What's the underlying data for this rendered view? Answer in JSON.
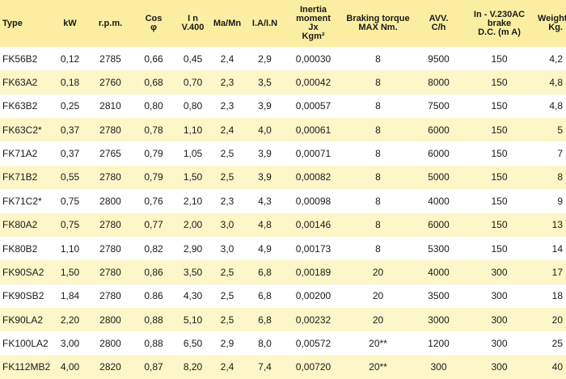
{
  "table": {
    "header": [
      [
        "Type"
      ],
      [
        "kW"
      ],
      [
        "r.p.m."
      ],
      [
        "Cos",
        "φ"
      ],
      [
        "I n",
        "V.400"
      ],
      [
        "Ma/Mn"
      ],
      [
        "I.A/I.N"
      ],
      [
        "Inertia",
        "moment",
        "Jx",
        "Kgm²"
      ],
      [
        "Braking torque",
        "MAX Nm."
      ],
      [
        "AVV.",
        "C/h"
      ],
      [
        "In - V.230AC",
        "brake",
        "D.C. (m A)"
      ],
      [
        "Weight",
        "Kg."
      ]
    ],
    "rows": [
      [
        "FK56B2",
        "0,12",
        "2785",
        "0,66",
        "0,45",
        "2,4",
        "2,9",
        "0,00030",
        "8",
        "9500",
        "150",
        "4,2"
      ],
      [
        "FK63A2",
        "0,18",
        "2760",
        "0,68",
        "0,70",
        "2,3",
        "3,5",
        "0,00042",
        "8",
        "8000",
        "150",
        "4,8"
      ],
      [
        "FK63B2",
        "0,25",
        "2810",
        "0,80",
        "0,80",
        "2,3",
        "3,9",
        "0,00057",
        "8",
        "7500",
        "150",
        "4,8"
      ],
      [
        "FK63C2*",
        "0,37",
        "2780",
        "0,78",
        "1,10",
        "2,4",
        "4,0",
        "0,00061",
        "8",
        "6000",
        "150",
        "5"
      ],
      [
        "FK71A2",
        "0,37",
        "2765",
        "0,79",
        "1,05",
        "2,5",
        "3,9",
        "0,00071",
        "8",
        "6000",
        "150",
        "7"
      ],
      [
        "FK71B2",
        "0,55",
        "2780",
        "0,79",
        "1,50",
        "2,5",
        "3,9",
        "0,00082",
        "8",
        "5000",
        "150",
        "8"
      ],
      [
        "FK71C2*",
        "0,75",
        "2800",
        "0,76",
        "2,10",
        "2,3",
        "4,3",
        "0,00098",
        "8",
        "4000",
        "150",
        "9"
      ],
      [
        "FK80A2",
        "0,75",
        "2780",
        "0,77",
        "2,00",
        "3,0",
        "4,8",
        "0,00146",
        "8",
        "6000",
        "150",
        "13"
      ],
      [
        "FK80B2",
        "1,10",
        "2780",
        "0,82",
        "2,90",
        "3,0",
        "4,9",
        "0,00173",
        "8",
        "5300",
        "150",
        "14"
      ],
      [
        "FK90SA2",
        "1,50",
        "2780",
        "0,86",
        "3,50",
        "2,5",
        "6,8",
        "0,00189",
        "20",
        "4000",
        "300",
        "17"
      ],
      [
        "FK90SB2",
        "1,84",
        "2780",
        "0.86",
        "4,30",
        "2,5",
        "6,8",
        "0,00200",
        "20",
        "3500",
        "300",
        "18"
      ],
      [
        "FK90LA2",
        "2,20",
        "2800",
        "0,88",
        "5,10",
        "2,5",
        "6,8",
        "0,00232",
        "20",
        "3000",
        "300",
        "20"
      ],
      [
        "FK100LA2",
        "3,00",
        "2800",
        "0,88",
        "6,50",
        "2,9",
        "8,0",
        "0,00572",
        "20**",
        "1200",
        "300",
        "25"
      ],
      [
        "FK112MB2",
        "4,00",
        "2820",
        "0,87",
        "8,20",
        "2,4",
        "7,4",
        "0,00720",
        "20**",
        "300",
        "300",
        "40"
      ]
    ]
  }
}
